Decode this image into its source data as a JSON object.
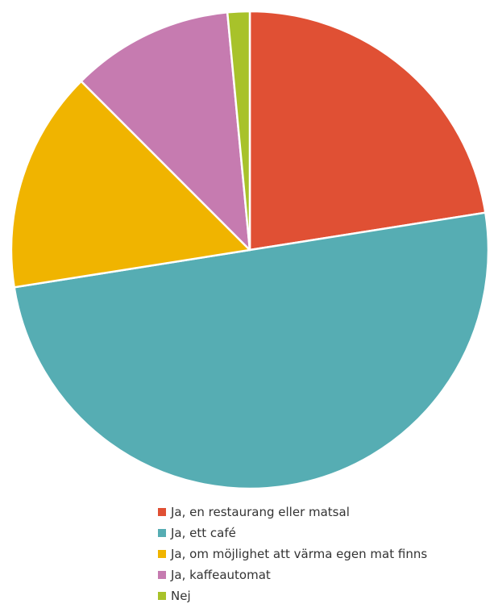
{
  "chart_data": {
    "type": "pie",
    "start_angle_deg": 0,
    "direction": "clockwise",
    "legend_position": "bottom",
    "slices": [
      {
        "label": "Ja, en restaurang eller matsal",
        "value": 22.5,
        "color": "#e05034"
      },
      {
        "label": "Ja, ett café",
        "value": 50.0,
        "color": "#56adb3"
      },
      {
        "label": "Ja, om möjlighet att värma egen mat finns",
        "value": 15.0,
        "color": "#f0b400"
      },
      {
        "label": "Ja, kaffeautomat",
        "value": 11.0,
        "color": "#c67bb0"
      },
      {
        "label": "Nej",
        "value": 1.5,
        "color": "#a8c22a"
      }
    ]
  }
}
